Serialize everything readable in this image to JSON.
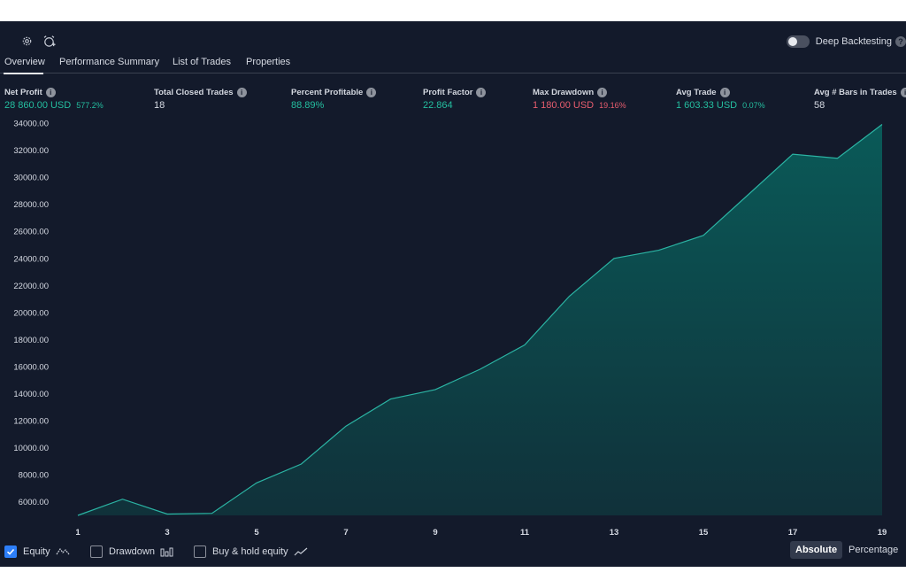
{
  "toolbar": {
    "settings_icon": "gear-icon",
    "alert_icon": "alarm-clock-add-icon",
    "deep_backtesting_label": "Deep Backtesting",
    "deep_backtesting_enabled": false,
    "help_glyph": "?"
  },
  "tabs": [
    {
      "label": "Overview",
      "active": true
    },
    {
      "label": "Performance Summary",
      "active": false
    },
    {
      "label": "List of Trades",
      "active": false
    },
    {
      "label": "Properties",
      "active": false
    }
  ],
  "stats": {
    "net_profit": {
      "label": "Net Profit",
      "value": "28 860.00 USD",
      "pct": "577.2%"
    },
    "total_closed_trades": {
      "label": "Total Closed Trades",
      "value": "18"
    },
    "percent_profitable": {
      "label": "Percent Profitable",
      "value": "88.89%"
    },
    "profit_factor": {
      "label": "Profit Factor",
      "value": "22.864"
    },
    "max_drawdown": {
      "label": "Max Drawdown",
      "value": "1 180.00 USD",
      "pct": "19.16%"
    },
    "avg_trade": {
      "label": "Avg Trade",
      "value": "1 603.33 USD",
      "pct": "0.07%"
    },
    "avg_bars": {
      "label": "Avg # Bars in Trades",
      "value": "58"
    },
    "info_glyph": "i"
  },
  "colors": {
    "background": "#131a2b",
    "positive": "#24bfa0",
    "negative": "#e85d6e",
    "equity_line": "#2bb3a3",
    "equity_fill_top": "#0a5a58",
    "equity_fill_bottom": "#10313a",
    "checkbox_on": "#2d7ff9"
  },
  "chart_data": {
    "type": "area",
    "title": "",
    "xlabel": "",
    "ylabel": "",
    "x": [
      1,
      2,
      3,
      4,
      5,
      6,
      7,
      8,
      9,
      10,
      11,
      12,
      13,
      14,
      15,
      16,
      17,
      18,
      19
    ],
    "series": [
      {
        "name": "Equity",
        "values": [
          5000,
          6200,
          5100,
          5150,
          7400,
          8800,
          11600,
          13600,
          14300,
          15800,
          17600,
          21200,
          24000,
          24600,
          25700,
          28700,
          31700,
          31400,
          33900
        ]
      }
    ],
    "ylim": [
      5000,
      34000
    ],
    "y_ticks": [
      6000,
      8000,
      10000,
      12000,
      14000,
      16000,
      18000,
      20000,
      22000,
      24000,
      26000,
      28000,
      30000,
      32000,
      34000
    ],
    "y_tick_labels": [
      "6000.00",
      "8000.00",
      "10000.00",
      "12000.00",
      "14000.00",
      "16000.00",
      "18000.00",
      "20000.00",
      "22000.00",
      "24000.00",
      "26000.00",
      "28000.00",
      "30000.00",
      "32000.00",
      "34000.00"
    ],
    "x_ticks": [
      1,
      3,
      5,
      7,
      9,
      11,
      13,
      15,
      17,
      19
    ],
    "x_tick_labels": [
      "1",
      "3",
      "5",
      "7",
      "9",
      "11",
      "13",
      "15",
      "17",
      "19"
    ],
    "grid": false,
    "legend": "none"
  },
  "footer": {
    "equity": {
      "label": "Equity",
      "checked": true,
      "icon": "equity-line-icon"
    },
    "drawdown": {
      "label": "Drawdown",
      "checked": false,
      "icon": "drawdown-bars-icon"
    },
    "buy_hold": {
      "label": "Buy & hold equity",
      "checked": false,
      "icon": "buy-hold-line-icon"
    },
    "absolute_label": "Absolute",
    "percentage_label": "Percentage",
    "mode": "Absolute"
  }
}
